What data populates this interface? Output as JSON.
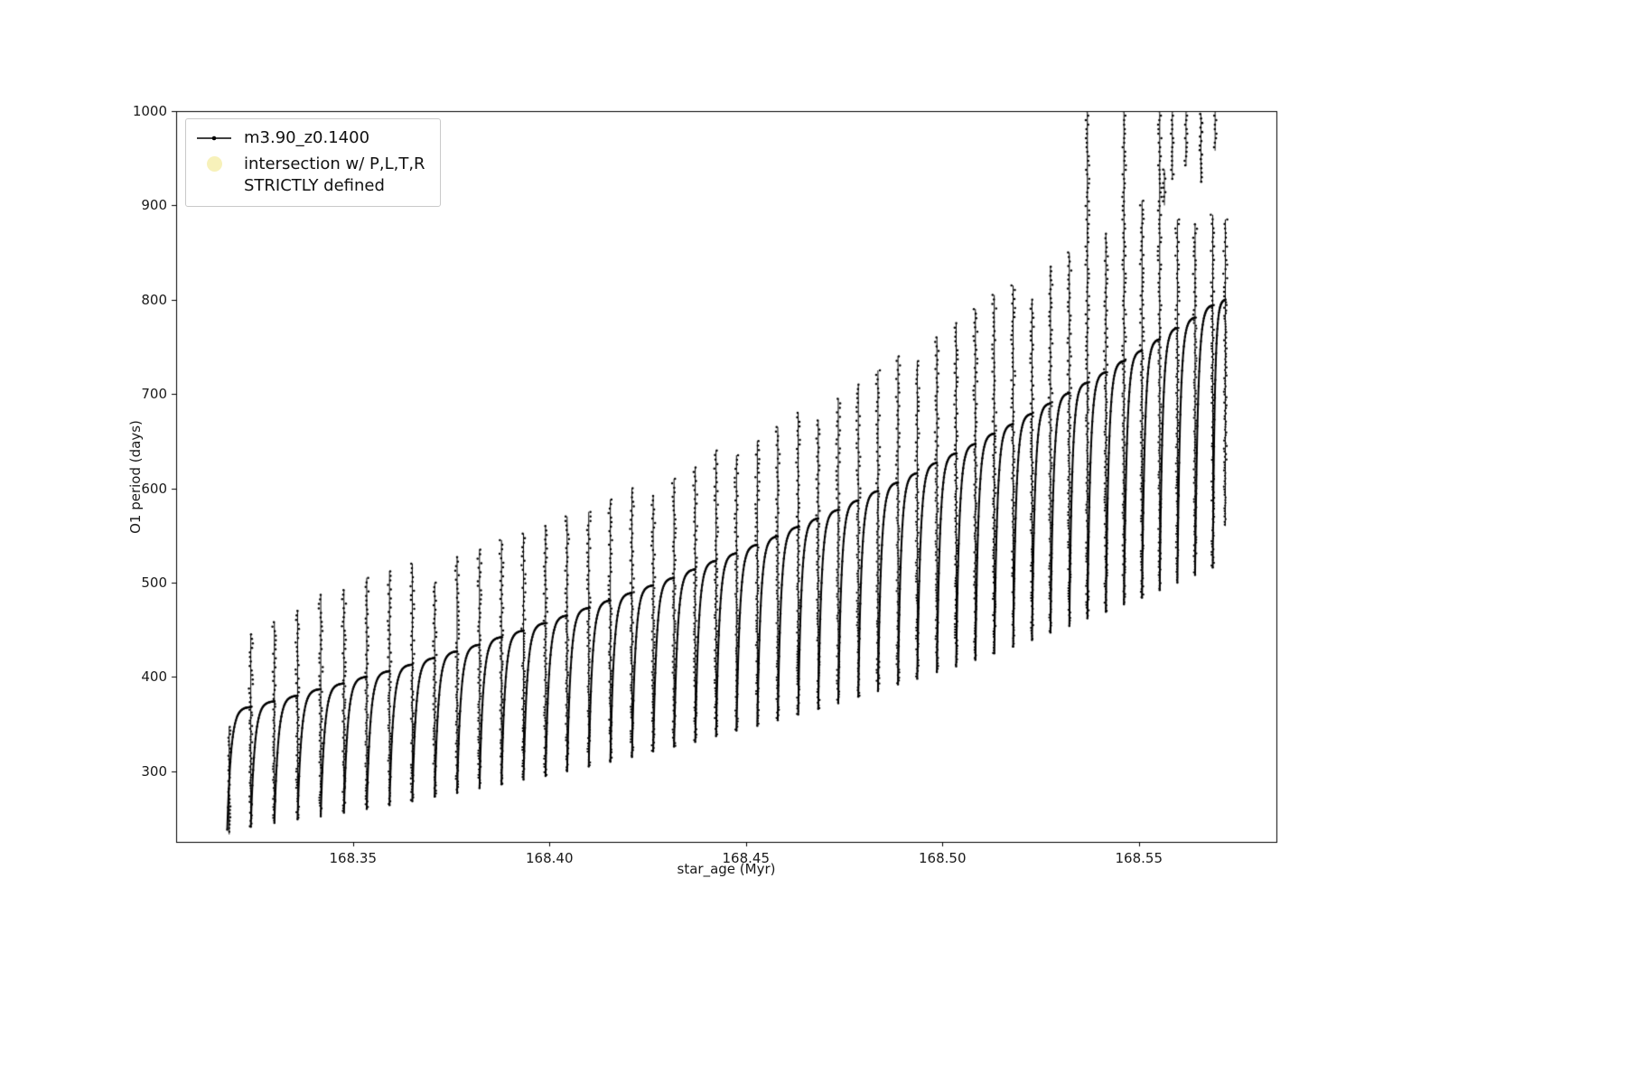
{
  "figure": {
    "background": "#ffffff"
  },
  "chart_data": {
    "type": "line",
    "title": "",
    "xlabel": "star_age (Myr)",
    "ylabel": "O1 period (days)",
    "xlim": [
      168.305,
      168.585
    ],
    "ylim": [
      225,
      1000
    ],
    "xticks": [
      "168.35",
      "168.40",
      "168.45",
      "168.50",
      "168.55"
    ],
    "xtick_values": [
      168.35,
      168.4,
      168.45,
      168.5,
      168.55
    ],
    "yticks": [
      "300",
      "400",
      "500",
      "600",
      "700",
      "800",
      "900",
      "1000"
    ],
    "ytick_values": [
      300,
      400,
      500,
      600,
      700,
      800,
      900,
      1000
    ],
    "grid": false,
    "legend": {
      "position": "upper left",
      "items": [
        {
          "label": "m3.90_z0.1400",
          "marker": "line-dot",
          "color": "#000000"
        },
        {
          "label_line1": "intersection w/ P,L,T,R",
          "label_line2": "STRICTLY defined",
          "marker": "circle",
          "color": "#f6efae"
        }
      ]
    },
    "series": {
      "name": "m3.90_z0.1400",
      "color": "#000000",
      "pattern": "relaxation-oscillation sawtooth: each tooth rises steeply from trough, flattens toward peak, then drops vertically with scattered points above and below the peak",
      "teeth": {
        "x_start": [
          168.318,
          168.324,
          168.33,
          168.3359,
          168.3418,
          168.3477,
          168.3535,
          168.3593,
          168.3651,
          168.3708,
          168.3765,
          168.3822,
          168.3878,
          168.3934,
          168.399,
          168.4045,
          168.41,
          168.4155,
          168.421,
          168.4264,
          168.4317,
          168.4371,
          168.4424,
          168.4476,
          168.4529,
          168.4581,
          168.4633,
          168.4684,
          168.4735,
          168.4786,
          168.4836,
          168.4887,
          168.4936,
          168.4986,
          168.5035,
          168.5084,
          168.5132,
          168.518,
          168.5228,
          168.5275,
          168.5323,
          168.5369,
          168.5416,
          168.5462,
          168.5508,
          168.5553,
          168.5598,
          168.5643,
          168.5688
        ],
        "peak": [
          368,
          374,
          380,
          387,
          393,
          400,
          406,
          413,
          420,
          427,
          434,
          442,
          449,
          457,
          465,
          473,
          481,
          489,
          497,
          505,
          514,
          523,
          531,
          540,
          549,
          559,
          568,
          577,
          587,
          597,
          606,
          616,
          627,
          637,
          647,
          658,
          668,
          679,
          690,
          701,
          712,
          723,
          735,
          746,
          758,
          770,
          781,
          794,
          800
        ],
        "trough": [
          238,
          241,
          245,
          249,
          252,
          256,
          260,
          264,
          268,
          273,
          277,
          282,
          286,
          291,
          295,
          300,
          305,
          310,
          315,
          321,
          326,
          331,
          337,
          343,
          348,
          354,
          360,
          366,
          372,
          379,
          385,
          392,
          398,
          405,
          411,
          418,
          425,
          432,
          439,
          447,
          454,
          462,
          469,
          477,
          484,
          492,
          500,
          508,
          516
        ],
        "spike_top": [
          445,
          458,
          470,
          487,
          492,
          505,
          512,
          520,
          500,
          527,
          535,
          545,
          552,
          560,
          570,
          575,
          588,
          600,
          592,
          610,
          622,
          640,
          635,
          650,
          665,
          680,
          672,
          695,
          710,
          725,
          740,
          735,
          760,
          775,
          790,
          805,
          815,
          800,
          835,
          850,
          1000,
          870,
          1000,
          905,
          1000,
          885,
          880,
          890,
          885
        ],
        "last_x_end": 168.572,
        "last_drop_bottom": 560
      },
      "leading_spike": {
        "x": 168.3185,
        "y0": 233,
        "y1": 347
      },
      "top_outliers": [
        {
          "x": 168.5565,
          "y0": 900,
          "y1": 938
        },
        {
          "x": 168.5585,
          "y0": 928,
          "y1": 1000
        },
        {
          "x": 168.562,
          "y0": 942,
          "y1": 1000
        },
        {
          "x": 168.5658,
          "y0": 925,
          "y1": 997
        },
        {
          "x": 168.5694,
          "y0": 958,
          "y1": 1000
        }
      ]
    }
  }
}
